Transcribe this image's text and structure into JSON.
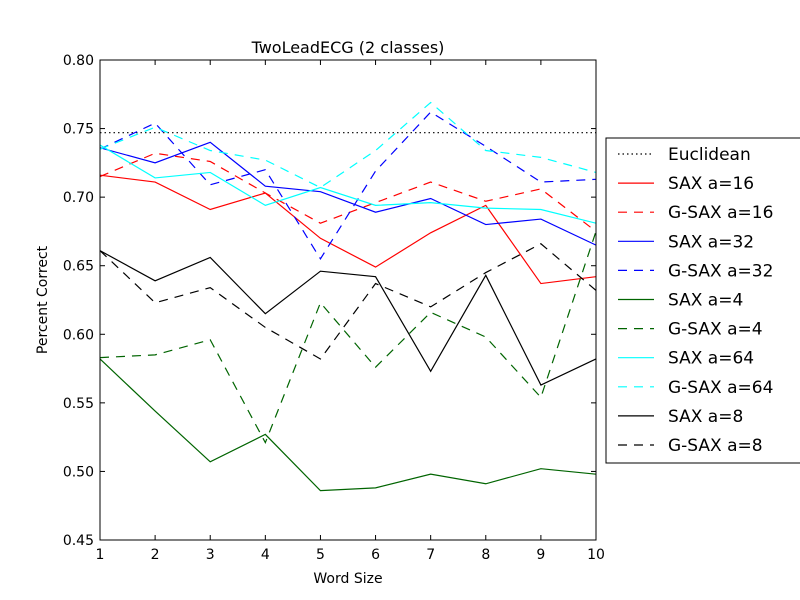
{
  "chart_data": {
    "type": "line",
    "title": "TwoLeadECG (2 classes)",
    "xlabel": "Word Size",
    "ylabel": "Percent Correct",
    "xlim": [
      1,
      10
    ],
    "ylim": [
      0.45,
      0.8
    ],
    "xticks": [
      "1",
      "2",
      "3",
      "4",
      "5",
      "6",
      "7",
      "8",
      "9",
      "10"
    ],
    "yticks": [
      "0.45",
      "0.50",
      "0.55",
      "0.60",
      "0.65",
      "0.70",
      "0.75",
      "0.80"
    ],
    "grid": false,
    "legend_position": "right, outside plot",
    "x": [
      1,
      2,
      3,
      4,
      5,
      6,
      7,
      8,
      9,
      10
    ],
    "series": [
      {
        "name": "Euclidean",
        "color": "#000000",
        "style": "dotted",
        "values": [
          0.747,
          0.747,
          0.747,
          0.747,
          0.747,
          0.747,
          0.747,
          0.747,
          0.747,
          0.747
        ]
      },
      {
        "name": "SAX a=16",
        "color": "#ff0000",
        "style": "solid",
        "values": [
          0.716,
          0.711,
          0.691,
          0.703,
          0.67,
          0.649,
          0.674,
          0.694,
          0.637,
          0.642
        ]
      },
      {
        "name": "G-SAX a=16",
        "color": "#ff0000",
        "style": "dashed",
        "values": [
          0.715,
          0.732,
          0.726,
          0.703,
          0.681,
          0.696,
          0.711,
          0.697,
          0.706,
          0.675
        ]
      },
      {
        "name": "SAX a=32",
        "color": "#0000ff",
        "style": "solid",
        "values": [
          0.736,
          0.725,
          0.74,
          0.708,
          0.704,
          0.689,
          0.699,
          0.68,
          0.684,
          0.665
        ]
      },
      {
        "name": "G-SAX a=32",
        "color": "#0000ff",
        "style": "dashed",
        "values": [
          0.735,
          0.754,
          0.709,
          0.72,
          0.655,
          0.719,
          0.762,
          0.737,
          0.711,
          0.713
        ]
      },
      {
        "name": "SAX a=4",
        "color": "#006400",
        "style": "solid",
        "values": [
          0.582,
          0.544,
          0.507,
          0.527,
          0.486,
          0.488,
          0.498,
          0.491,
          0.502,
          0.498
        ]
      },
      {
        "name": "G-SAX a=4",
        "color": "#006400",
        "style": "dashed",
        "values": [
          0.583,
          0.585,
          0.596,
          0.521,
          0.623,
          0.576,
          0.616,
          0.598,
          0.554,
          0.675
        ]
      },
      {
        "name": "SAX a=64",
        "color": "#00ffff",
        "style": "solid",
        "values": [
          0.738,
          0.714,
          0.718,
          0.694,
          0.707,
          0.694,
          0.696,
          0.692,
          0.691,
          0.681
        ]
      },
      {
        "name": "G-SAX a=64",
        "color": "#00ffff",
        "style": "dashed",
        "values": [
          0.735,
          0.751,
          0.734,
          0.727,
          0.707,
          0.734,
          0.769,
          0.734,
          0.729,
          0.718
        ]
      },
      {
        "name": "SAX a=8",
        "color": "#000000",
        "style": "solid",
        "values": [
          0.661,
          0.639,
          0.656,
          0.615,
          0.646,
          0.642,
          0.573,
          0.643,
          0.563,
          0.582
        ]
      },
      {
        "name": "G-SAX a=8",
        "color": "#000000",
        "style": "dashed",
        "values": [
          0.661,
          0.623,
          0.634,
          0.605,
          0.582,
          0.637,
          0.62,
          0.645,
          0.666,
          0.632
        ]
      }
    ]
  }
}
